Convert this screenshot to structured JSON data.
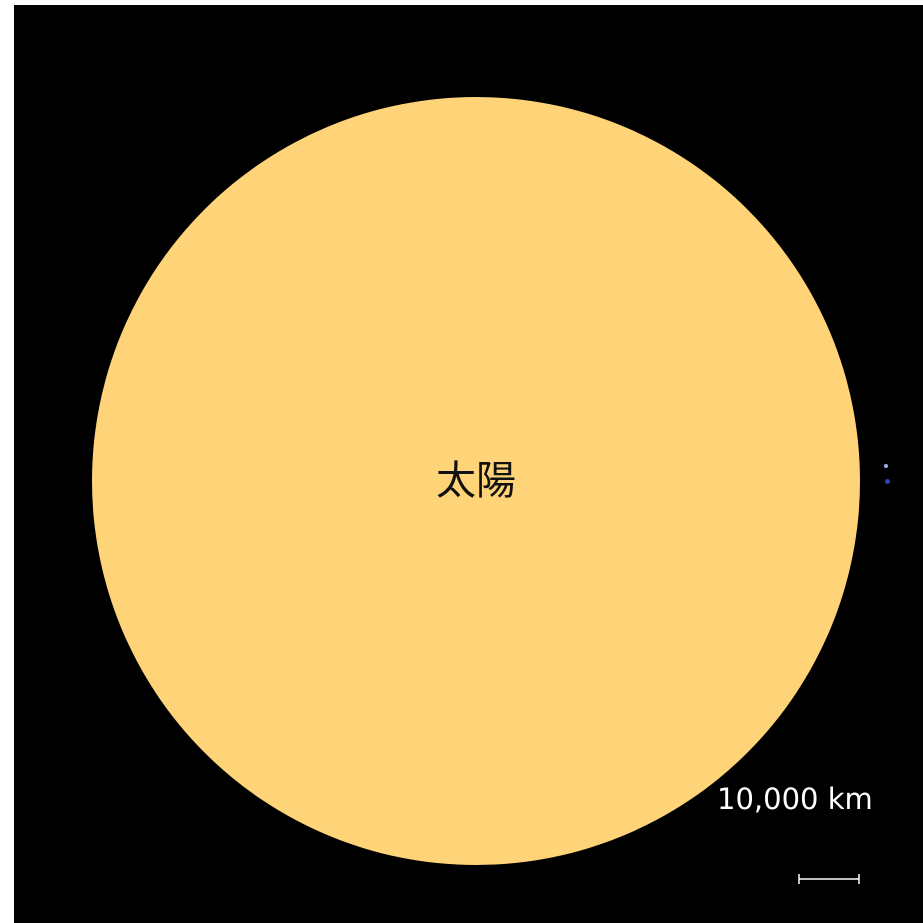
{
  "diagram": {
    "background_color": "#000000",
    "bodies": [
      {
        "label": "太陽",
        "color": "#FFD478"
      },
      {
        "label": "",
        "color": "#9DB4E8"
      },
      {
        "label": "",
        "color": "#3340B0"
      }
    ],
    "scale_bar": {
      "label": "10,000 km",
      "color": "#ffffff"
    }
  }
}
